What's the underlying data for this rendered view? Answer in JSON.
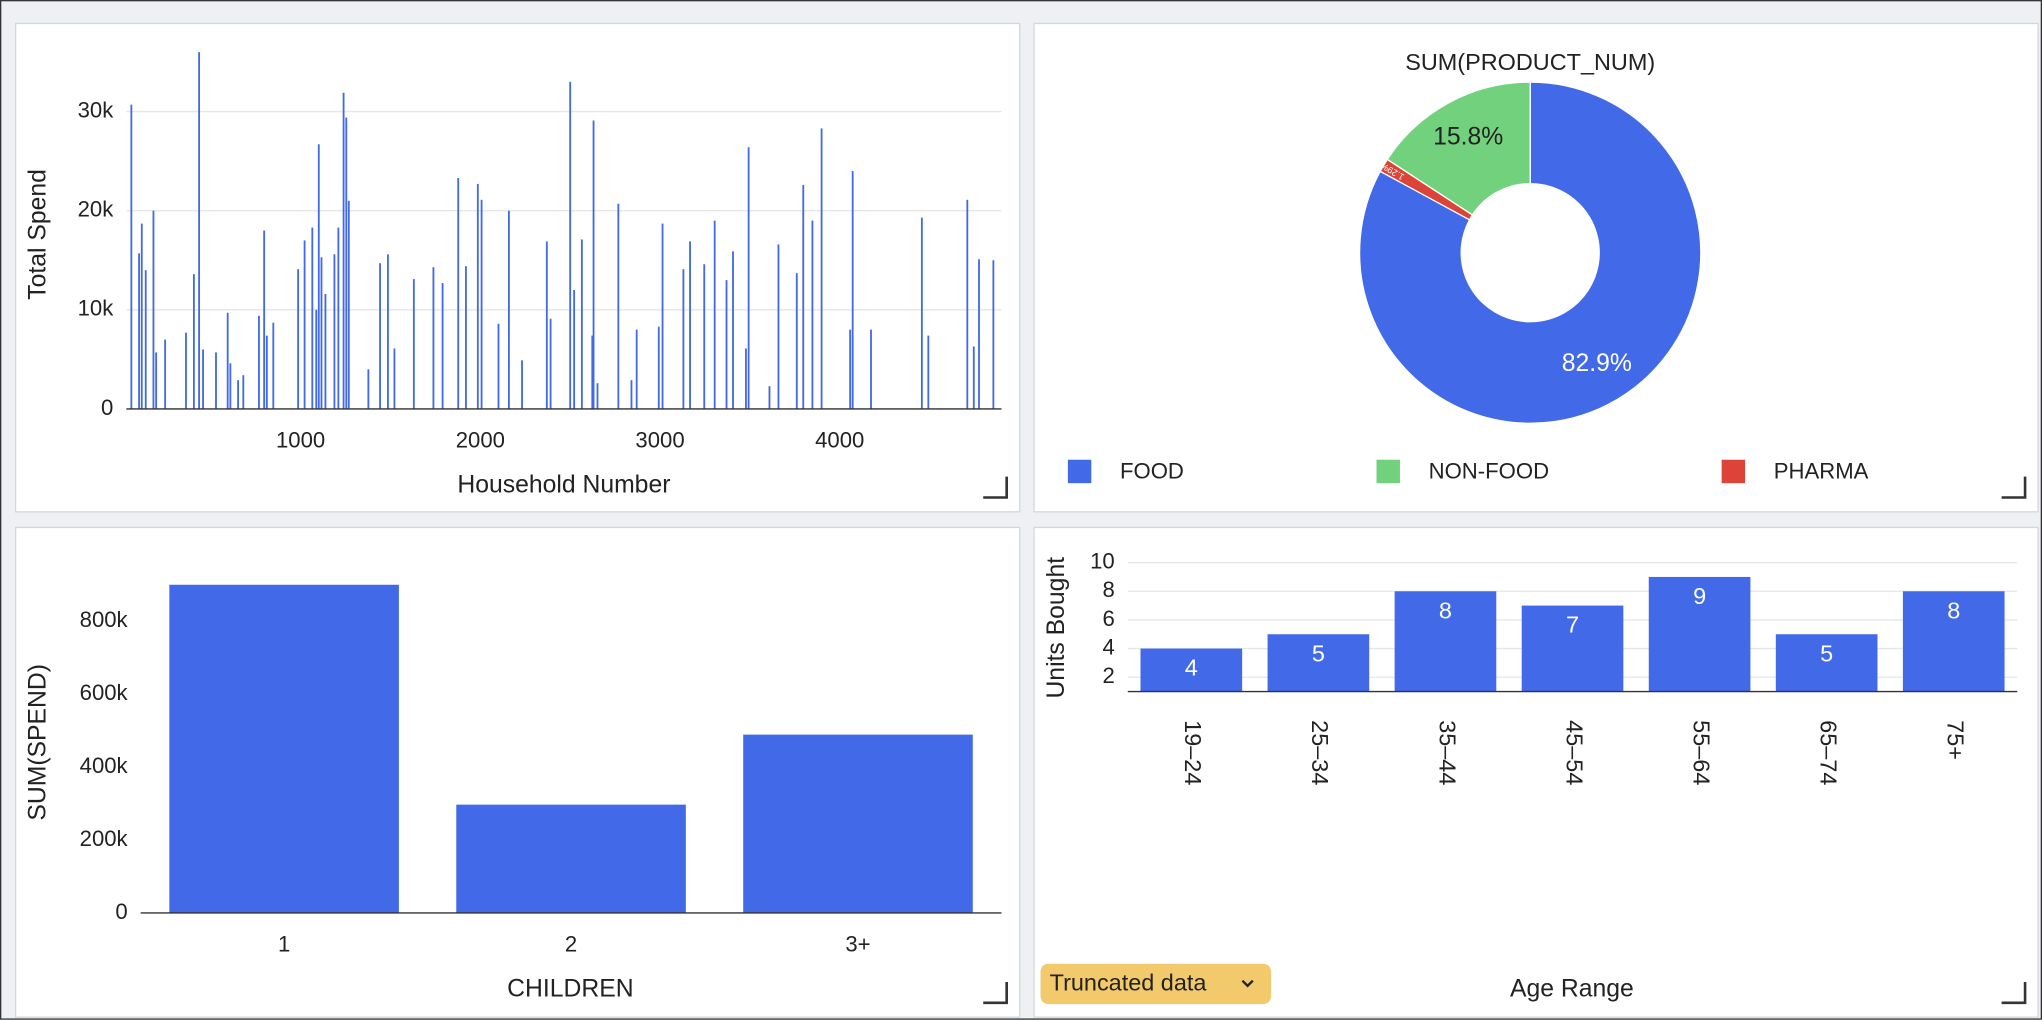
{
  "ui": {
    "truncated_label": "Truncated data"
  },
  "chart_data": [
    {
      "type": "bar",
      "x_label": "Household Number",
      "y_label": "Total Spend",
      "color": "#4169e8",
      "grid": true,
      "xlim": [
        30,
        4900
      ],
      "xticks": [
        1000,
        2000,
        3000,
        4000
      ],
      "ylim": [
        0,
        36000
      ],
      "yticks": [
        0,
        {
          "value": 10000,
          "label": "10k"
        },
        {
          "value": 20000,
          "label": "20k"
        },
        {
          "value": 30000,
          "label": "30k"
        }
      ],
      "x": [
        58,
        101,
        116,
        138,
        181,
        196,
        246,
        362,
        406,
        435,
        457,
        529,
        594,
        609,
        652,
        681,
        768,
        797,
        812,
        848,
        986,
        1022,
        1065,
        1087,
        1101,
        1116,
        1138,
        1188,
        1210,
        1239,
        1254,
        1268,
        1377,
        1442,
        1486,
        1522,
        1630,
        1739,
        1790,
        1877,
        1920,
        1986,
        2007,
        2101,
        2159,
        2232,
        2370,
        2391,
        2500,
        2522,
        2565,
        2623,
        2630,
        2652,
        2768,
        2841,
        2870,
        2993,
        3014,
        3130,
        3167,
        3246,
        3304,
        3370,
        3406,
        3478,
        3493,
        3609,
        3659,
        3761,
        3797,
        3848,
        3899,
        4058,
        4072,
        4174,
        4457,
        4493,
        4710,
        4746,
        4775,
        4855
      ],
      "values": [
        30700,
        15700,
        18700,
        14000,
        20000,
        5700,
        7000,
        7700,
        13600,
        36000,
        6000,
        5700,
        9700,
        4600,
        2900,
        3400,
        9400,
        18000,
        7400,
        8700,
        14100,
        17000,
        18300,
        10000,
        26700,
        15300,
        11600,
        15600,
        18300,
        31900,
        29400,
        21000,
        4000,
        14700,
        15600,
        6100,
        13100,
        14300,
        12700,
        23300,
        14400,
        22700,
        21100,
        8600,
        20000,
        4900,
        16900,
        9100,
        33000,
        12000,
        17100,
        7400,
        29100,
        2600,
        20700,
        2900,
        8000,
        8300,
        18700,
        14100,
        16900,
        14600,
        19000,
        13000,
        15900,
        6100,
        26400,
        2300,
        16600,
        13700,
        22600,
        19000,
        28300,
        8000,
        24000,
        8000,
        19300,
        7400,
        21100,
        6300,
        15100,
        15000
      ]
    },
    {
      "type": "pie",
      "title": "SUM(PRODUCT_NUM)",
      "categories": [
        "FOOD",
        "NON-FOOD",
        "PHARMA"
      ],
      "values": [
        82.9,
        15.8,
        1.29
      ],
      "value_labels": [
        "82.9%",
        "15.8%",
        "1.29%"
      ],
      "colors": [
        "#4169e8",
        "#72d17c",
        "#db4437"
      ],
      "legend": "bottom"
    },
    {
      "type": "bar",
      "x_label": "CHILDREN",
      "y_label": "SUM(SPEND)",
      "color": "#4169e8",
      "grid": false,
      "categories": [
        "1",
        "2",
        "3+"
      ],
      "values": [
        900000,
        297000,
        489000
      ],
      "ylim": [
        0,
        950000
      ],
      "yticks": [
        0,
        {
          "value": 200000,
          "label": "200k"
        },
        {
          "value": 400000,
          "label": "400k"
        },
        {
          "value": 600000,
          "label": "600k"
        },
        {
          "value": 800000,
          "label": "800k"
        }
      ]
    },
    {
      "type": "bar",
      "x_label": "Age Range",
      "y_label": "Units Bought",
      "color": "#4169e8",
      "grid": true,
      "categories": [
        "19–24",
        "25–34",
        "35–44",
        "45–54",
        "55–64",
        "65–74",
        "75+"
      ],
      "values": [
        4,
        5,
        8,
        7,
        9,
        5,
        8
      ],
      "ylim": [
        1,
        10
      ],
      "yticks": [
        2,
        4,
        6,
        8,
        10
      ],
      "data_labels": true
    }
  ]
}
